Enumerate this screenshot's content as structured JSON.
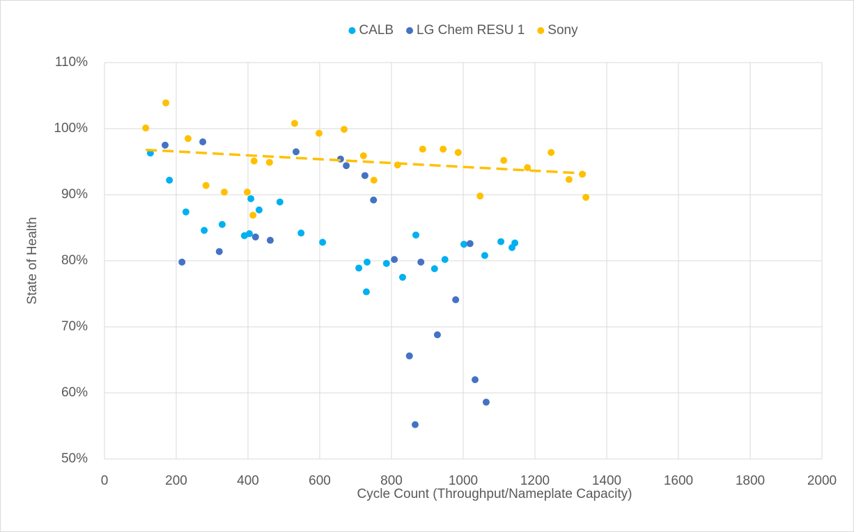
{
  "chart_data": {
    "type": "scatter",
    "xlabel": "Cycle Count (Throughput/Nameplate Capacity)",
    "ylabel": "State of Health",
    "xlim": [
      0,
      2000
    ],
    "xticks": [
      0,
      200,
      400,
      600,
      800,
      1000,
      1200,
      1400,
      1600,
      1800,
      2000
    ],
    "ylim": [
      50,
      110
    ],
    "yticks": [
      {
        "value": 50,
        "label": "50%"
      },
      {
        "value": 60,
        "label": "60%"
      },
      {
        "value": 70,
        "label": "70%"
      },
      {
        "value": 80,
        "label": "80%"
      },
      {
        "value": 90,
        "label": "90%"
      },
      {
        "value": 100,
        "label": "100%"
      },
      {
        "value": 110,
        "label": "110%"
      }
    ],
    "grid": true,
    "legend": "top",
    "series": [
      {
        "name": "CALB",
        "color": "#00b0f0",
        "x": [
          128,
          181,
          227,
          278,
          328,
          390,
          404,
          408,
          431,
          489,
          548,
          608,
          709,
          730,
          732,
          786,
          831,
          868,
          920,
          949,
          1002,
          1060,
          1105,
          1136,
          1144
        ],
        "values": [
          96.3,
          92.2,
          87.4,
          84.6,
          85.5,
          83.8,
          84.1,
          89.4,
          87.7,
          88.9,
          84.2,
          82.8,
          78.9,
          75.3,
          79.8,
          79.6,
          77.5,
          83.9,
          78.8,
          80.2,
          82.5,
          80.8,
          82.9,
          82.0,
          82.7
        ]
      },
      {
        "name": "LG Chem RESU 1",
        "color": "#4472c4",
        "x": [
          169,
          216,
          274,
          320,
          421,
          462,
          534,
          658,
          674,
          726,
          750,
          808,
          882,
          850,
          866,
          928,
          979,
          1019,
          1033,
          1064
        ],
        "values": [
          97.5,
          79.8,
          98.0,
          81.4,
          83.6,
          83.1,
          96.5,
          95.4,
          94.4,
          92.9,
          89.2,
          80.2,
          79.8,
          65.6,
          55.2,
          68.8,
          74.1,
          82.6,
          62.0,
          58.6
        ]
      },
      {
        "name": "Sony",
        "color": "#ffc000",
        "trendline": "linear",
        "x": [
          115,
          171,
          233,
          283,
          334,
          398,
          417,
          414,
          460,
          530,
          598,
          668,
          722,
          751,
          817,
          887,
          944,
          986,
          1047,
          1113,
          1179,
          1245,
          1295,
          1332,
          1342
        ],
        "values": [
          100.1,
          103.9,
          98.5,
          91.4,
          90.4,
          90.4,
          95.1,
          86.9,
          94.9,
          100.8,
          99.3,
          99.9,
          95.9,
          92.2,
          94.5,
          96.9,
          96.9,
          96.4,
          89.8,
          95.2,
          94.1,
          96.4,
          92.3,
          93.1,
          89.6
        ]
      }
    ]
  }
}
